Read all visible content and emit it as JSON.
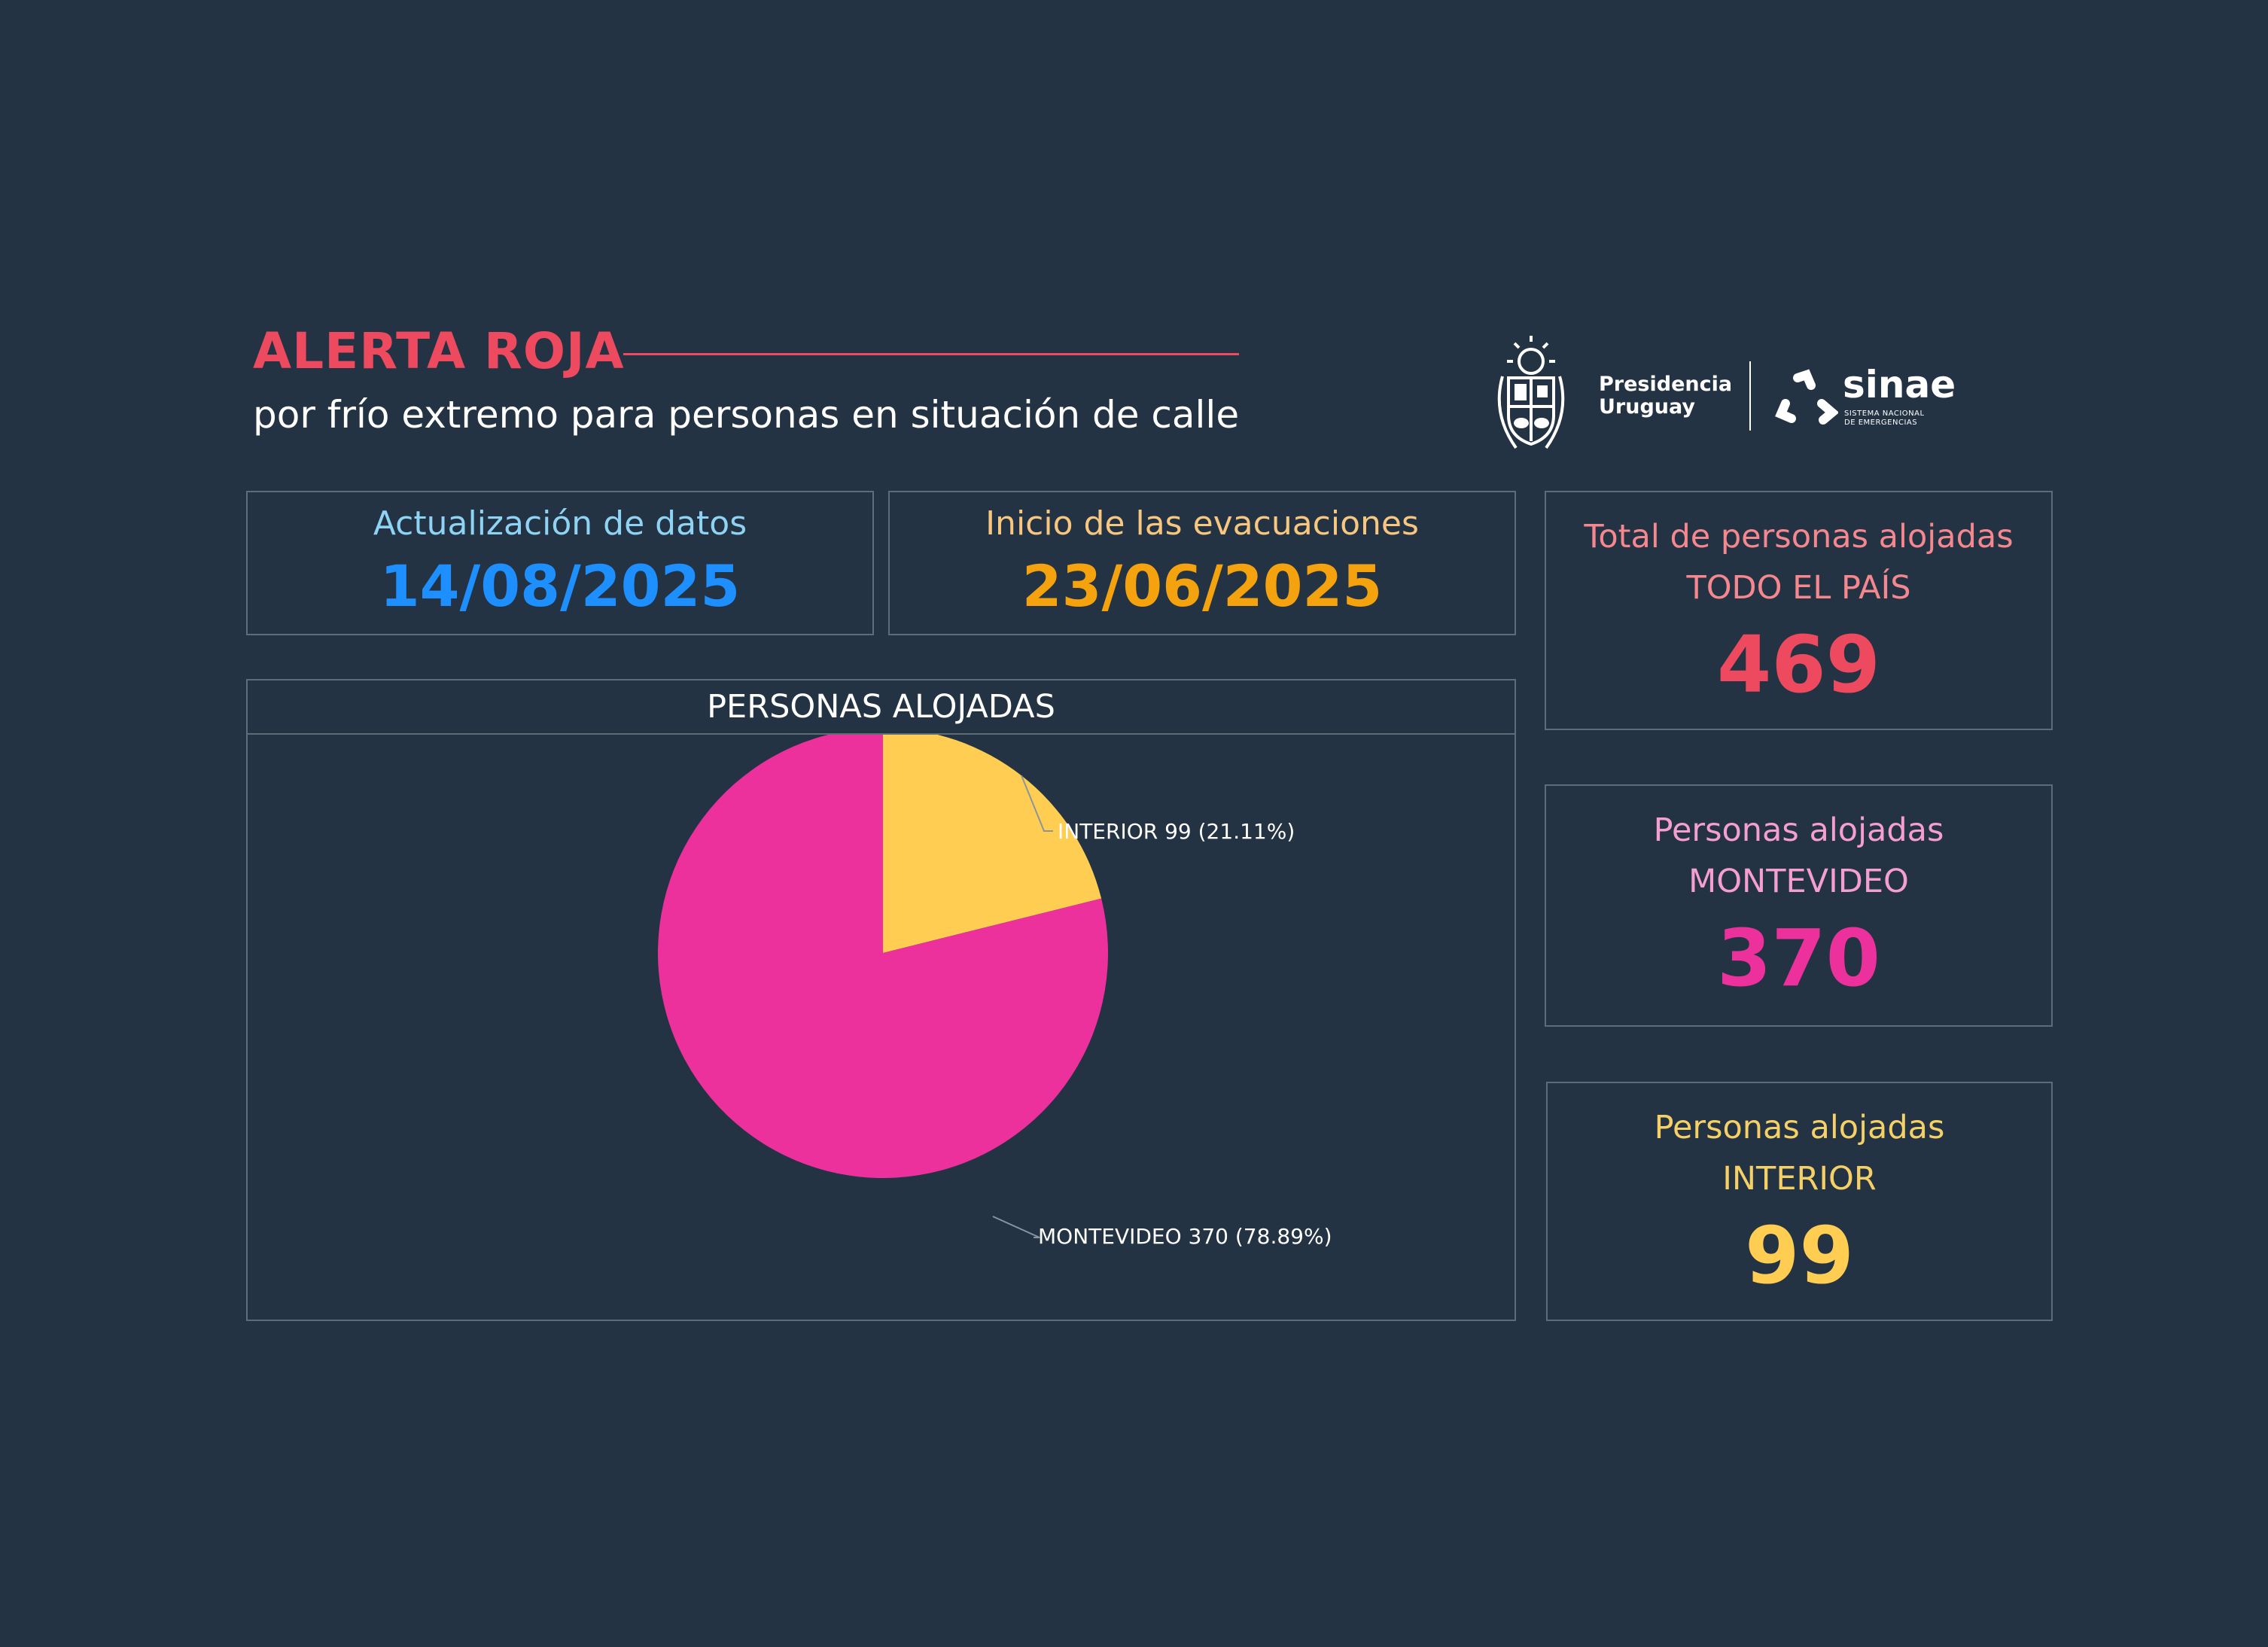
{
  "header": {
    "title": "ALERTA ROJA",
    "subtitle": "por frío extremo para personas en situación de calle"
  },
  "logos": {
    "presidencia_line1": "Presidencia",
    "presidencia_line2": "Uruguay",
    "sinae": "sinae",
    "sinae_sub_line1": "SISTEMA NACIONAL",
    "sinae_sub_line2": "DE EMERGENCIAS"
  },
  "dates": {
    "update_label": "Actualización de datos",
    "update_value": "14/08/2025",
    "start_label": "Inicio de las evacuaciones",
    "start_value": "23/06/2025"
  },
  "stats": [
    {
      "label": "Total de personas alojadas",
      "sublabel": "TODO EL PAÍS",
      "value": "469"
    },
    {
      "label": "Personas alojadas",
      "sublabel": "MONTEVIDEO",
      "value": "370"
    },
    {
      "label": "Personas alojadas",
      "sublabel": "INTERIOR",
      "value": "99"
    }
  ],
  "colors": {
    "background": "#233343",
    "alert_red": "#ee4a5f",
    "update_label": "#8fd3f4",
    "update_value": "#1e8fff",
    "start_label": "#f7c67f",
    "start_value": "#f5a20f",
    "total_label": "#f5878f",
    "montevideo_label": "#f59ed3",
    "montevideo": "#ec309c",
    "interior_label": "#f5d067",
    "interior": "#ffcd51",
    "card_border": "#5f6b77"
  },
  "chart_data": {
    "type": "pie",
    "title": "PERSONAS ALOJADAS",
    "slices": [
      {
        "name": "INTERIOR",
        "value": 99,
        "percent": 21.11,
        "label": "INTERIOR 99 (21.11%)",
        "color": "#ffcd51"
      },
      {
        "name": "MONTEVIDEO",
        "value": 370,
        "percent": 78.89,
        "label": "MONTEVIDEO 370 (78.89%)",
        "color": "#ec309c"
      }
    ]
  }
}
